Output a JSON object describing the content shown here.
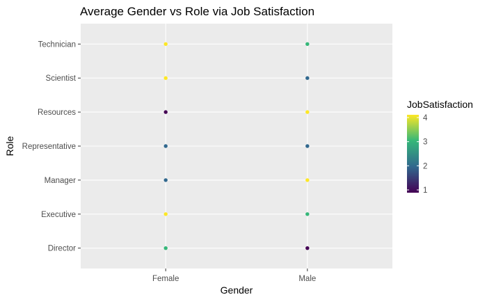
{
  "chart_data": {
    "type": "scatter",
    "title": "Average Gender vs Role via Job Satisfaction",
    "xlabel": "Gender",
    "ylabel": "Role",
    "x_categories": [
      "Female",
      "Male"
    ],
    "y_categories": [
      "Director",
      "Executive",
      "Manager",
      "Representative",
      "Resources",
      "Scientist",
      "Technician"
    ],
    "points": [
      {
        "x": "Female",
        "y": "Technician",
        "value": 4
      },
      {
        "x": "Female",
        "y": "Scientist",
        "value": 4
      },
      {
        "x": "Female",
        "y": "Resources",
        "value": 1
      },
      {
        "x": "Female",
        "y": "Representative",
        "value": 2
      },
      {
        "x": "Female",
        "y": "Manager",
        "value": 2
      },
      {
        "x": "Female",
        "y": "Executive",
        "value": 4
      },
      {
        "x": "Female",
        "y": "Director",
        "value": 3
      },
      {
        "x": "Male",
        "y": "Technician",
        "value": 3
      },
      {
        "x": "Male",
        "y": "Scientist",
        "value": 2
      },
      {
        "x": "Male",
        "y": "Resources",
        "value": 4
      },
      {
        "x": "Male",
        "y": "Representative",
        "value": 2
      },
      {
        "x": "Male",
        "y": "Manager",
        "value": 4
      },
      {
        "x": "Male",
        "y": "Executive",
        "value": 3
      },
      {
        "x": "Male",
        "y": "Director",
        "value": 1
      }
    ],
    "legend": {
      "title": "JobSatisfaction",
      "ticks": [
        1,
        2,
        3,
        4
      ],
      "range": [
        1,
        4
      ],
      "placement": "right"
    },
    "color_scale": {
      "1": "#440154",
      "2": "#31688e",
      "3": "#35b779",
      "4": "#fde725"
    },
    "panel_background": "#ebebeb",
    "grid": true
  }
}
